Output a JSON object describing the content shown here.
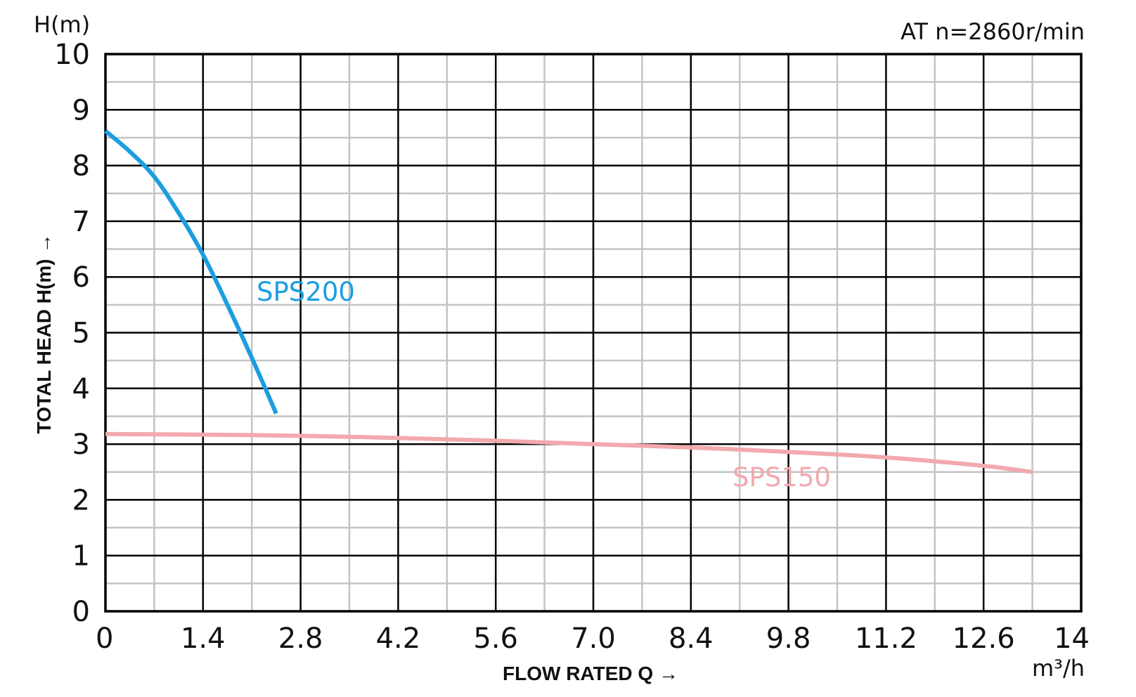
{
  "chart_data": {
    "type": "line",
    "title": "",
    "annotation": "AT n=2860r/min",
    "xlabel": "FLOW RATED Q →",
    "ylabel": "TOTAL HEAD H(m) →",
    "x_unit": "m³/h",
    "y_unit": "H(m)",
    "xlim": [
      0,
      14
    ],
    "ylim": [
      0,
      10
    ],
    "x_ticks": [
      "0",
      "1.4",
      "2.8",
      "4.2",
      "5.6",
      "7.0",
      "8.4",
      "9.8",
      "11.2",
      "12.6",
      "14"
    ],
    "y_ticks": [
      "0",
      "1",
      "2",
      "3",
      "4",
      "5",
      "6",
      "7",
      "8",
      "9",
      "10"
    ],
    "x_minor_step": 0.7,
    "grid": true,
    "series": [
      {
        "name": "SPS200",
        "color": "#1a9ee0",
        "x": [
          0,
          0.35,
          0.7,
          1.05,
          1.4,
          1.75,
          2.1,
          2.45
        ],
        "y": [
          8.62,
          8.25,
          7.8,
          7.15,
          6.4,
          5.5,
          4.55,
          3.55
        ]
      },
      {
        "name": "SPS150",
        "color": "#f2a9ae",
        "x": [
          0,
          1.4,
          2.8,
          4.2,
          5.6,
          7.0,
          8.4,
          9.8,
          11.2,
          12.6,
          13.3
        ],
        "y": [
          3.18,
          3.17,
          3.15,
          3.11,
          3.06,
          3.0,
          2.94,
          2.86,
          2.76,
          2.61,
          2.5
        ]
      }
    ]
  }
}
